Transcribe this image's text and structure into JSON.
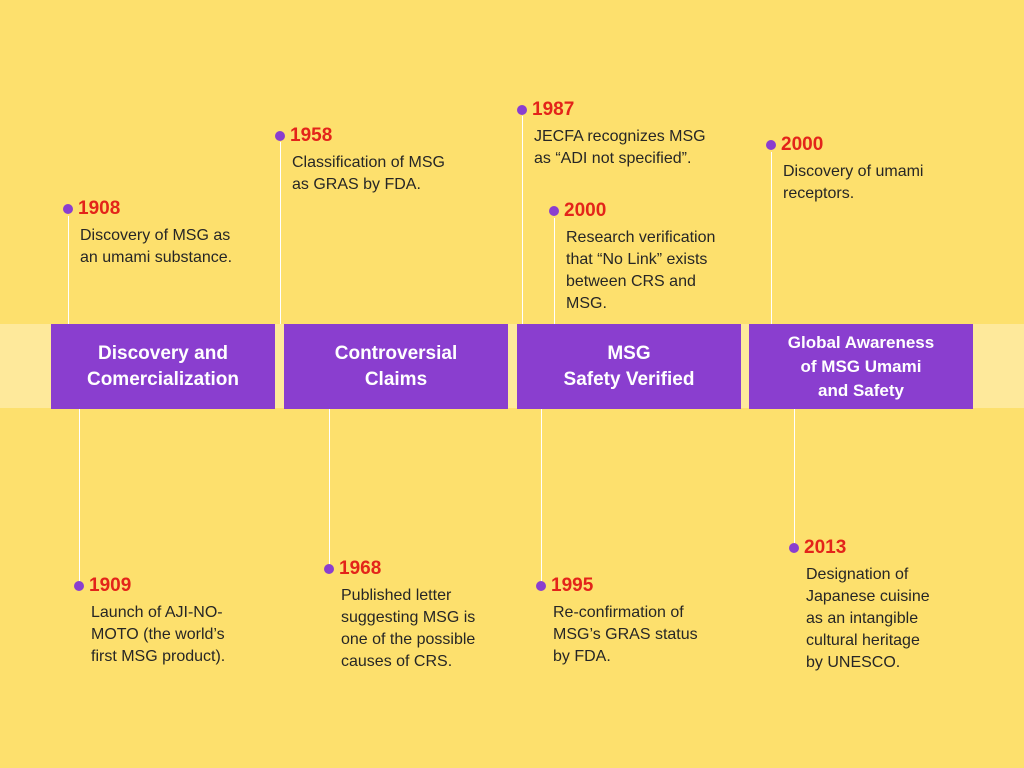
{
  "phases": [
    {
      "title": "Discovery and\nComercialization"
    },
    {
      "title": "Controversial\nClaims"
    },
    {
      "title": "MSG\nSafety Verified"
    },
    {
      "title": "Global Awareness\nof MSG Umami\nand Safety"
    }
  ],
  "events": [
    {
      "year": "1908",
      "text": "Discovery of MSG as\nan umami substance."
    },
    {
      "year": "1958",
      "text": "Classification of MSG\nas GRAS by FDA."
    },
    {
      "year": "1987",
      "text": "JECFA recognizes MSG\nas “ADI not specified”."
    },
    {
      "year": "2000",
      "text": "Research verification\nthat “No Link” exists\nbetween  CRS and\nMSG."
    },
    {
      "year": "2000",
      "text": "Discovery of umami\nreceptors."
    },
    {
      "year": "1909",
      "text": "Launch of AJI-NO-\nMOTO (the world’s\nfirst MSG product)."
    },
    {
      "year": "1968",
      "text": "Published letter\nsuggesting MSG is\none of the possible\ncauses of CRS."
    },
    {
      "year": "1995",
      "text": "Re-confirmation of\nMSG’s GRAS status\nby FDA."
    },
    {
      "year": "2013",
      "text": "Designation of\nJapanese cuisine\nas an intangible\ncultural heritage\nby UNESCO."
    }
  ],
  "colors": {
    "background": "#fde06d",
    "band": "#fee99b",
    "phase": "#8a3ecf",
    "year": "#e3241a",
    "dot": "#8a3ecf",
    "text": "#262626"
  }
}
